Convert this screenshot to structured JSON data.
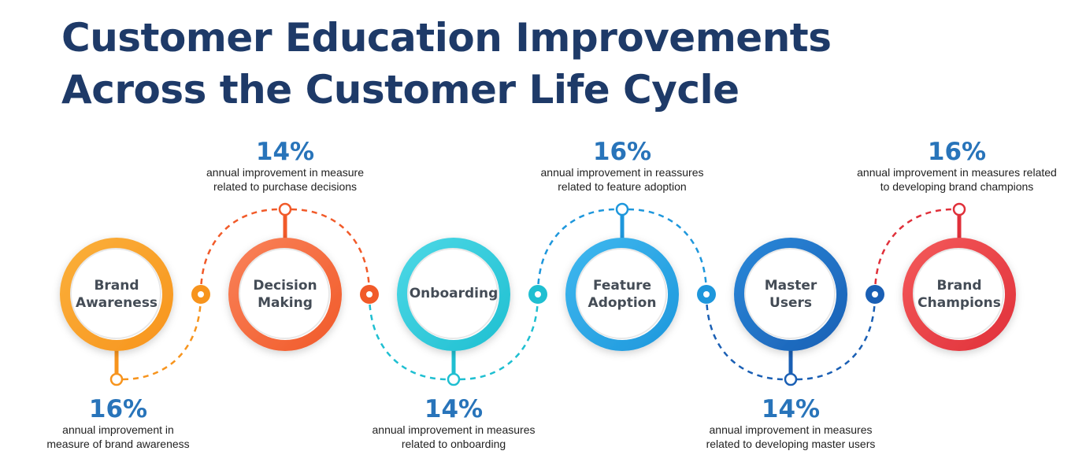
{
  "title": {
    "line1": "Customer Education Improvements",
    "line2": "Across the Customer Life Cycle"
  },
  "stages": [
    {
      "name_line1": "Brand",
      "name_line2": "Awareness",
      "color_light": "#fbb03b",
      "color_dark": "#f7941d",
      "stat": {
        "value": "16%",
        "desc_line1": "annual improvement in",
        "desc_line2": "measure of brand awareness",
        "position": "below"
      }
    },
    {
      "name_line1": "Decision",
      "name_line2": "Making",
      "color_light": "#f9825a",
      "color_dark": "#f15a29",
      "stat": {
        "value": "14%",
        "desc_line1": "annual improvement in measure",
        "desc_line2": "related to purchase decisions",
        "position": "above"
      }
    },
    {
      "name_line1": "Onboarding",
      "name_line2": "",
      "color_light": "#4dd8e6",
      "color_dark": "#1fbfd1",
      "stat": {
        "value": "14%",
        "desc_line1": "annual improvement in measures",
        "desc_line2": "related to onboarding",
        "position": "below"
      }
    },
    {
      "name_line1": "Feature",
      "name_line2": "Adoption",
      "color_light": "#3fb8ef",
      "color_dark": "#1e97dc",
      "stat": {
        "value": "16%",
        "desc_line1": "annual improvement in reassures",
        "desc_line2": "related to feature adoption",
        "position": "above"
      }
    },
    {
      "name_line1": "Master",
      "name_line2": "Users",
      "color_light": "#2b88d9",
      "color_dark": "#1a5fb4",
      "stat": {
        "value": "14%",
        "desc_line1": "annual improvement in measures",
        "desc_line2": "related to developing master users",
        "position": "below"
      }
    },
    {
      "name_line1": "Brand",
      "name_line2": "Champions",
      "color_light": "#f45a5a",
      "color_dark": "#e0303a",
      "stat": {
        "value": "16%",
        "desc_line1": "annual improvement in measures related",
        "desc_line2": "to developing brand champions",
        "position": "above"
      }
    }
  ]
}
